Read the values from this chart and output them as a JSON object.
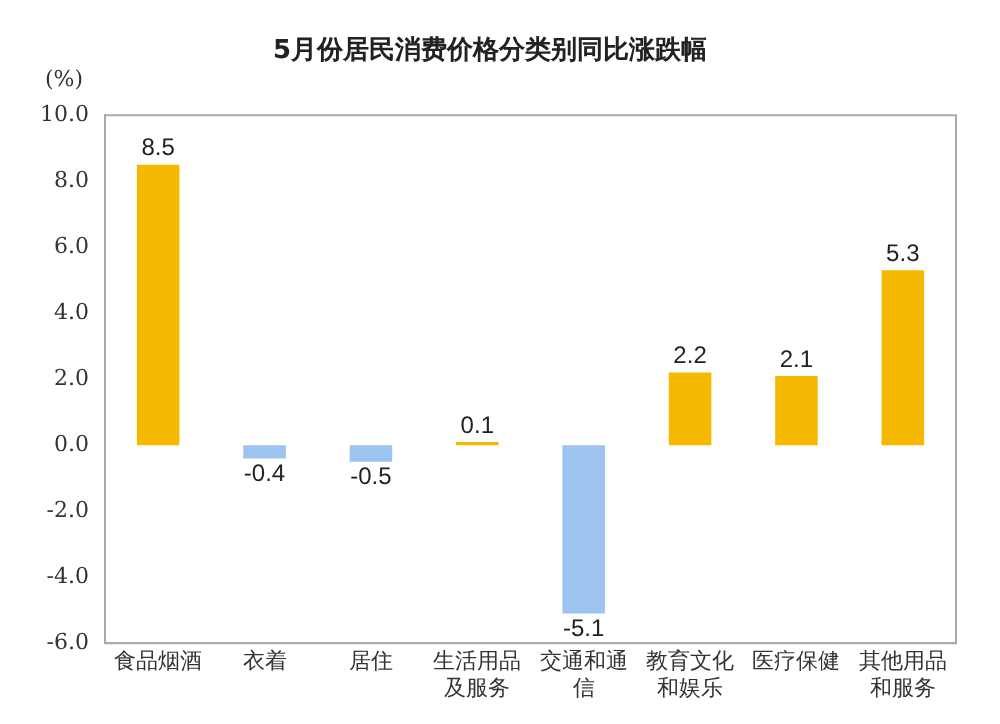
{
  "chart_data": {
    "type": "bar",
    "title": "5月份居民消费价格分类别同比涨跌幅",
    "ylabel": "(%)",
    "categories": [
      "食品烟酒",
      "衣着",
      "居住",
      "生活用品及服务",
      "交通和通信",
      "教育文化和娱乐",
      "医疗保健",
      "其他用品和服务"
    ],
    "values": [
      8.5,
      -0.4,
      -0.5,
      0.1,
      -5.1,
      2.2,
      2.1,
      5.3
    ],
    "colors": [
      "#f5b800",
      "#9dc3f0",
      "#9dc3f0",
      "#f5b800",
      "#9dc3f0",
      "#f5b800",
      "#f5b800",
      "#f5b800"
    ],
    "ylim": [
      -6,
      10
    ],
    "yticks": [
      {
        "value": -6,
        "label": "-6.0"
      },
      {
        "value": -4,
        "label": "-4.0"
      },
      {
        "value": -2,
        "label": "-2.0"
      },
      {
        "value": 0,
        "label": "0.0"
      },
      {
        "value": 2,
        "label": "2.0"
      },
      {
        "value": 4,
        "label": "4.0"
      },
      {
        "value": 6,
        "label": "6.0"
      },
      {
        "value": 8,
        "label": "8.0"
      },
      {
        "value": 10,
        "label": "10.0"
      }
    ],
    "data_labels": true,
    "grid": false,
    "legend": false
  }
}
